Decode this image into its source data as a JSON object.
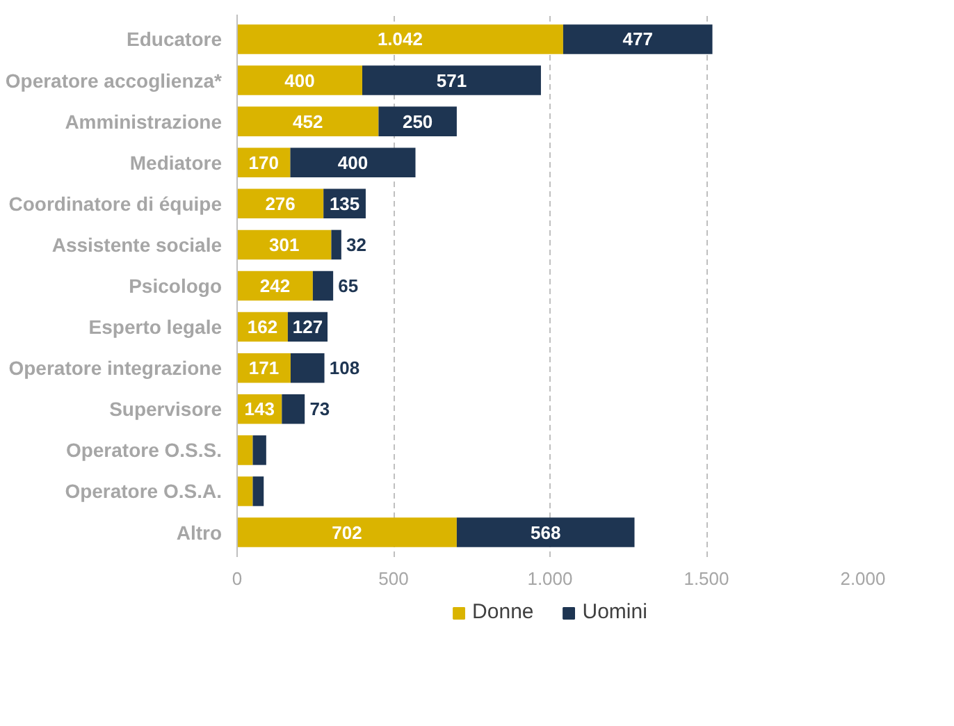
{
  "chart_data": {
    "type": "bar",
    "orientation": "horizontal",
    "stacked": true,
    "categories": [
      "Educatore",
      "Operatore accoglienza*",
      "Amministrazione",
      "Mediatore",
      "Coordinatore di équipe",
      "Assistente sociale",
      "Psicologo",
      "Esperto legale",
      "Operatore integrazione",
      "Supervisore",
      "Operatore O.S.S.",
      "Operatore O.S.A.",
      "Altro"
    ],
    "series": [
      {
        "name": "Donne",
        "color": "#dab400",
        "values": [
          1042,
          400,
          452,
          170,
          276,
          301,
          242,
          162,
          171,
          143,
          50,
          50,
          702
        ],
        "value_labels": [
          "1.042",
          "400",
          "452",
          "170",
          "276",
          "301",
          "242",
          "162",
          "171",
          "143",
          null,
          null,
          "702"
        ]
      },
      {
        "name": "Uomini",
        "color": "#1e3552",
        "values": [
          477,
          571,
          250,
          400,
          135,
          32,
          65,
          127,
          108,
          73,
          43,
          35,
          568
        ],
        "value_labels": [
          "477",
          "571",
          "250",
          "400",
          "135",
          "32",
          "65",
          "127",
          "108",
          "73",
          null,
          null,
          "568"
        ]
      }
    ],
    "xlim": [
      0,
      2000
    ],
    "xticks": [
      {
        "value": 0,
        "label": "0"
      },
      {
        "value": 500,
        "label": "500"
      },
      {
        "value": 1000,
        "label": "1.000"
      },
      {
        "value": 1500,
        "label": "1.500"
      },
      {
        "value": 2000,
        "label": "2.000"
      }
    ],
    "grid": "x",
    "legend": "bottom"
  }
}
